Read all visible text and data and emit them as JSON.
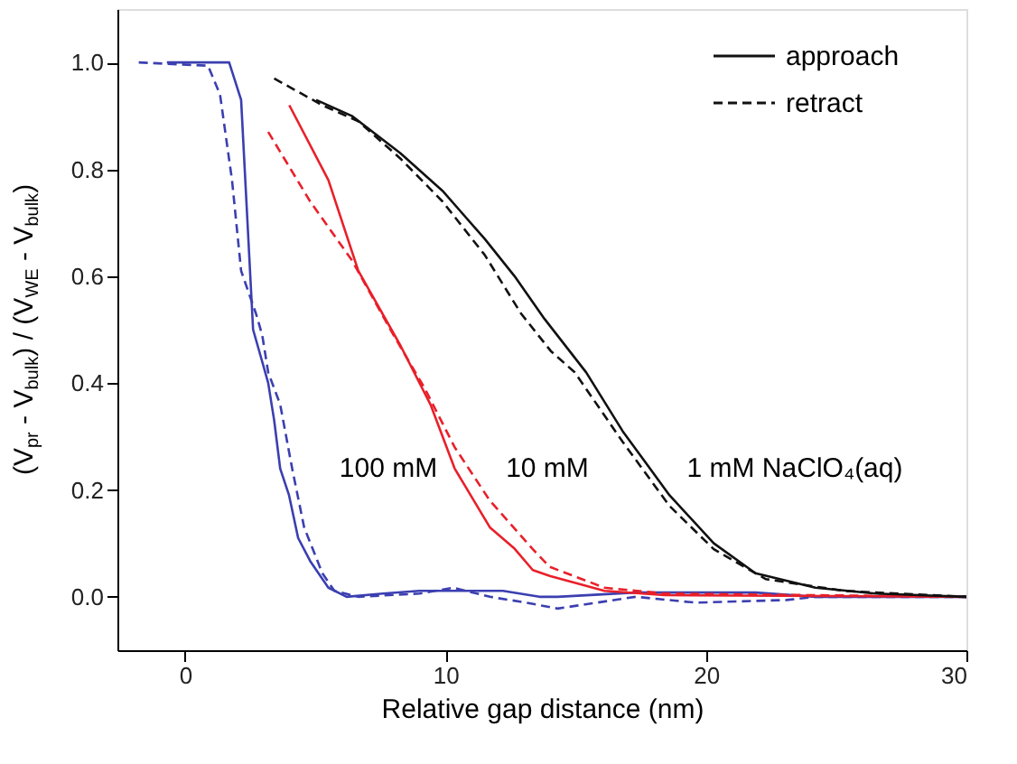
{
  "chart_data": {
    "type": "line",
    "xlabel": "Relative gap distance (nm)",
    "ylabel": "(V$_{pr}$ - V$_{bulk}$) / (V$_{WE}$ - V$_{bulk}$)",
    "xlim": [
      -2.6,
      30
    ],
    "ylim": [
      -0.1,
      1.1
    ],
    "xticks": [
      0,
      10,
      20,
      30
    ],
    "yticks": [
      {
        "value": 0,
        "label": "0.0"
      },
      {
        "value": 0.2,
        "label": "0.2"
      },
      {
        "value": 0.4,
        "label": "0.4"
      },
      {
        "value": 0.6,
        "label": "0.6"
      },
      {
        "value": 0.8,
        "label": "0.8"
      },
      {
        "value": 1,
        "label": "1.0"
      }
    ],
    "grid": false,
    "legend": "top right",
    "series": [
      {
        "line_style": "solid",
        "color": "#3b3fb0",
        "x": [
          -0.7,
          1.69,
          2.15,
          2.31,
          2.61,
          2.96,
          3.19,
          3.42,
          3.65,
          3.99,
          4.34,
          4.8,
          5.5,
          6.2,
          7.6,
          9.0,
          12.2,
          13.6,
          14.3,
          17.3,
          21.9,
          24.2,
          30
        ],
        "values": [
          1.0,
          1.0,
          0.93,
          0.78,
          0.5,
          0.44,
          0.4,
          0.33,
          0.24,
          0.19,
          0.11,
          0.067,
          0.017,
          0.0,
          0.006,
          0.011,
          0.011,
          0.0,
          0.0,
          0.008,
          0.008,
          0.0,
          0.0
        ]
      },
      {
        "line_style": "dashed",
        "color": "#3b3fb0",
        "x": [
          -1.78,
          0.88,
          1.34,
          1.8,
          2.15,
          2.72,
          2.96,
          3.19,
          3.65,
          4.11,
          4.57,
          5.27,
          5.73,
          6.65,
          9.0,
          10.3,
          11.7,
          13.1,
          14.3,
          17.3,
          19.6,
          23.1,
          24.2,
          30
        ],
        "values": [
          1.0,
          0.994,
          0.94,
          0.78,
          0.61,
          0.53,
          0.49,
          0.42,
          0.36,
          0.24,
          0.13,
          0.044,
          0.011,
          0.0,
          0.006,
          0.017,
          0.0,
          -0.011,
          -0.022,
          0.0,
          -0.011,
          -0.006,
          0.0,
          0.0
        ]
      },
      {
        "line_style": "solid",
        "color": "#e8202a",
        "x": [
          4.0,
          5.5,
          6.65,
          8.27,
          9.42,
          10.35,
          11.7,
          12.65,
          13.35,
          14.0,
          16.1,
          18.4,
          30
        ],
        "values": [
          0.92,
          0.78,
          0.61,
          0.47,
          0.36,
          0.24,
          0.13,
          0.09,
          0.05,
          0.039,
          0.011,
          0.003,
          0.0
        ]
      },
      {
        "line_style": "dashed",
        "color": "#e8202a",
        "x": [
          3.19,
          4.8,
          6.4,
          8.0,
          9.2,
          10.35,
          11.7,
          13.35,
          14.0,
          16.1,
          18.4,
          30
        ],
        "values": [
          0.87,
          0.74,
          0.63,
          0.49,
          0.39,
          0.28,
          0.18,
          0.089,
          0.056,
          0.017,
          0.006,
          0.0
        ]
      },
      {
        "name": "approach",
        "line_style": "solid",
        "color": "#111111",
        "x": [
          5.03,
          6.4,
          8.27,
          9.88,
          11.5,
          12.65,
          13.8,
          15.4,
          16.8,
          18.6,
          20.3,
          21.9,
          24.2,
          26.5,
          30
        ],
        "values": [
          0.93,
          0.9,
          0.83,
          0.76,
          0.67,
          0.6,
          0.52,
          0.42,
          0.31,
          0.19,
          0.1,
          0.044,
          0.017,
          0.006,
          0.0
        ]
      },
      {
        "name": "retract",
        "line_style": "dashed",
        "color": "#111111",
        "x": [
          3.42,
          5.27,
          6.65,
          8.27,
          9.88,
          11.5,
          12.9,
          14.04,
          14.96,
          16.8,
          18.6,
          20.3,
          22.3,
          25.3,
          30
        ],
        "values": [
          0.97,
          0.92,
          0.89,
          0.82,
          0.74,
          0.64,
          0.53,
          0.46,
          0.42,
          0.29,
          0.17,
          0.089,
          0.033,
          0.011,
          0.0
        ]
      }
    ],
    "annotations": [
      "100 mM",
      "10 mM",
      "1 mM NaClO₄(aq)"
    ]
  }
}
